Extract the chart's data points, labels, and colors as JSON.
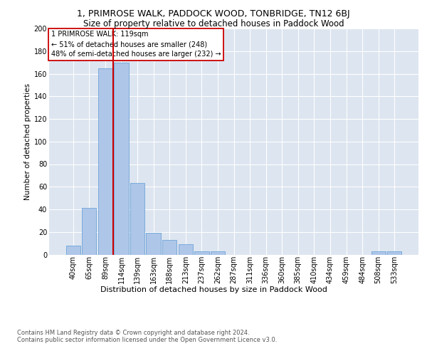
{
  "title1": "1, PRIMROSE WALK, PADDOCK WOOD, TONBRIDGE, TN12 6BJ",
  "title2": "Size of property relative to detached houses in Paddock Wood",
  "xlabel": "Distribution of detached houses by size in Paddock Wood",
  "ylabel": "Number of detached properties",
  "footer1": "Contains HM Land Registry data © Crown copyright and database right 2024.",
  "footer2": "Contains public sector information licensed under the Open Government Licence v3.0.",
  "annotation_line1": "1 PRIMROSE WALK: 119sqm",
  "annotation_line2": "← 51% of detached houses are smaller (248)",
  "annotation_line3": "48% of semi-detached houses are larger (232) →",
  "property_size": 119,
  "bar_labels": [
    "40sqm",
    "65sqm",
    "89sqm",
    "114sqm",
    "139sqm",
    "163sqm",
    "188sqm",
    "213sqm",
    "237sqm",
    "262sqm",
    "287sqm",
    "311sqm",
    "336sqm",
    "360sqm",
    "385sqm",
    "410sqm",
    "434sqm",
    "459sqm",
    "484sqm",
    "508sqm",
    "533sqm"
  ],
  "bar_values": [
    8,
    41,
    165,
    170,
    63,
    19,
    13,
    9,
    3,
    3,
    0,
    0,
    0,
    0,
    0,
    0,
    0,
    0,
    0,
    3,
    3
  ],
  "bar_color": "#aec6e8",
  "bar_edge_color": "#5b9bd5",
  "vline_color": "#cc0000",
  "vline_x": 2.5,
  "annotation_box_color": "#cc0000",
  "plot_bg_color": "#dde5f0",
  "ylim": [
    0,
    200
  ],
  "yticks": [
    0,
    20,
    40,
    60,
    80,
    100,
    120,
    140,
    160,
    180,
    200
  ],
  "title1_fontsize": 9,
  "title2_fontsize": 8.5,
  "xlabel_fontsize": 8,
  "ylabel_fontsize": 7.5,
  "tick_fontsize": 7,
  "annotation_fontsize": 7,
  "footer_fontsize": 6
}
